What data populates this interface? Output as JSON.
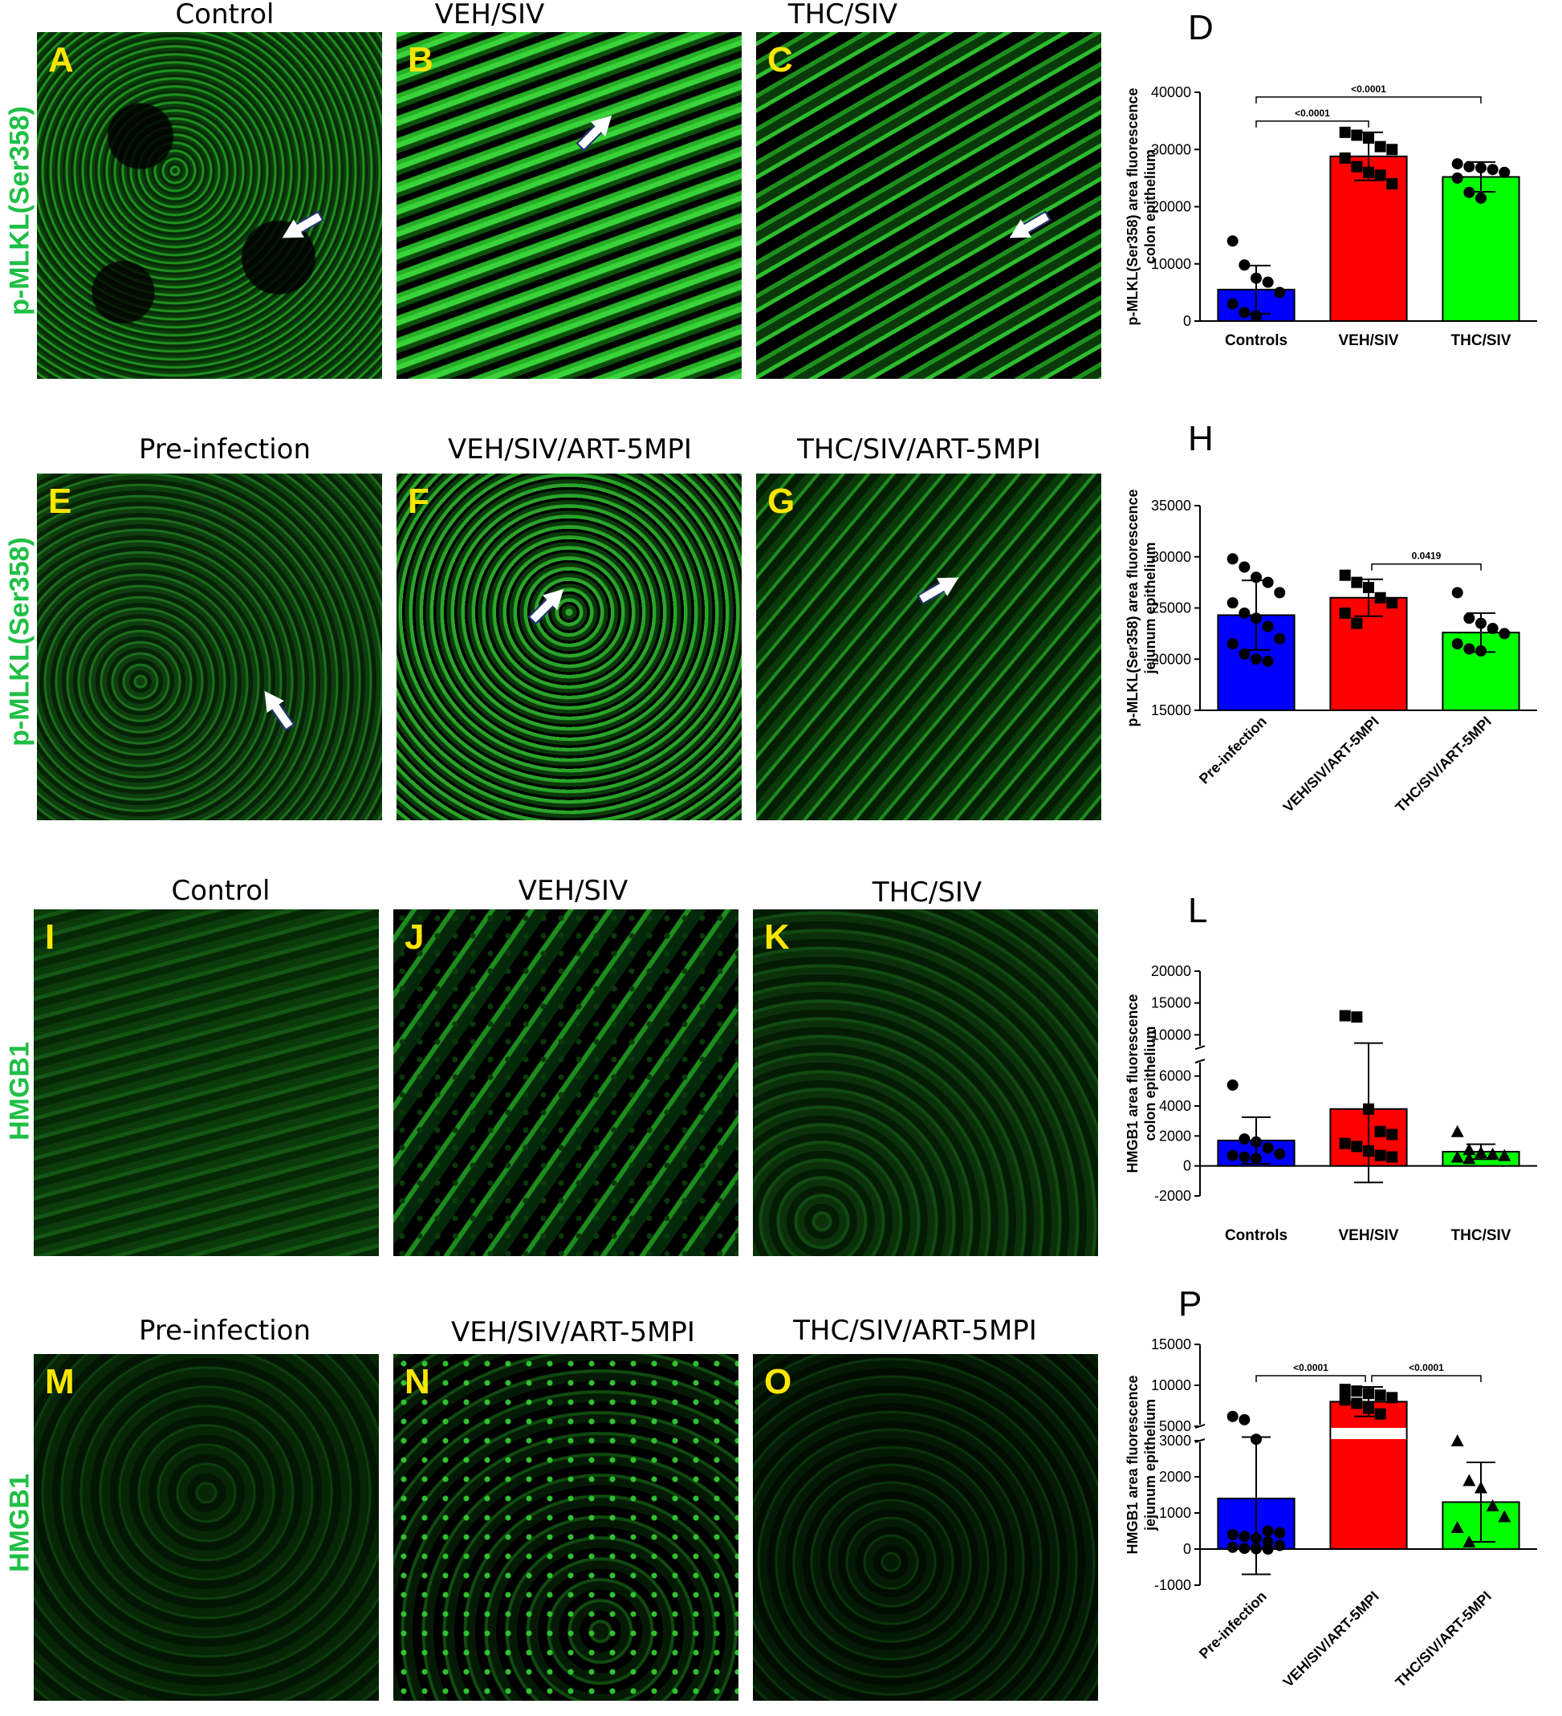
{
  "colors": {
    "blue": "#0000ff",
    "red": "#ff0000",
    "green": "#00ff00",
    "label_green": "#1fbf45",
    "letter_yellow": "#ffe600"
  },
  "rows": [
    {
      "row_label": "p-MLKL(Ser358)",
      "panels": [
        {
          "title": "Control",
          "letter": "A"
        },
        {
          "title": "VEH/SIV",
          "letter": "B"
        },
        {
          "title": "THC/SIV",
          "letter": "C"
        }
      ],
      "chart_letter": "D"
    },
    {
      "row_label": "p-MLKL(Ser358)",
      "panels": [
        {
          "title": "Pre-infection",
          "letter": "E"
        },
        {
          "title": "VEH/SIV/ART-5MPI",
          "letter": "F"
        },
        {
          "title": "THC/SIV/ART-5MPI",
          "letter": "G"
        }
      ],
      "chart_letter": "H"
    },
    {
      "row_label": "HMGB1",
      "panels": [
        {
          "title": "Control",
          "letter": "I"
        },
        {
          "title": "VEH/SIV",
          "letter": "J"
        },
        {
          "title": "THC/SIV",
          "letter": "K"
        }
      ],
      "chart_letter": "L"
    },
    {
      "row_label": "HMGB1",
      "panels": [
        {
          "title": "Pre-infection",
          "letter": "M"
        },
        {
          "title": "VEH/SIV/ART-5MPI",
          "letter": "N"
        },
        {
          "title": "THC/SIV/ART-5MPI",
          "letter": "O"
        }
      ],
      "chart_letter": "P"
    }
  ],
  "chart_data": [
    {
      "type": "bar",
      "panel": "D",
      "ylabel": "p-MLKL(Ser358) area fluorescence colon epithelium",
      "categories": [
        "Controls",
        "VEH/SIV",
        "THC/SIV"
      ],
      "values": [
        5500,
        28800,
        25200
      ],
      "errors": [
        4200,
        4200,
        2600
      ],
      "points": [
        [
          14000,
          9800,
          7500,
          6800,
          5000,
          3000,
          1500,
          900
        ],
        [
          33000,
          32500,
          32000,
          30500,
          30000,
          28500,
          27000,
          26000,
          25500,
          24000
        ],
        [
          27500,
          27000,
          26800,
          26500,
          26000,
          25000,
          22500,
          21500
        ]
      ],
      "markers": [
        "circle",
        "square",
        "circle"
      ],
      "ylim": [
        0,
        40000
      ],
      "yticks": [
        "0",
        "10000",
        "20000",
        "30000",
        "40000"
      ],
      "yticks_values": [
        0,
        10000,
        20000,
        30000,
        40000
      ],
      "sig": [
        {
          "from": 0,
          "to": 1,
          "label": "<0.0001",
          "level": 0
        },
        {
          "from": 0,
          "to": 2,
          "label": "<0.0001",
          "level": 1
        }
      ]
    },
    {
      "type": "bar",
      "panel": "H",
      "ylabel": "p-MLKL(Ser358) area fluorescence jejunum epithelium",
      "categories": [
        "Pre-infection",
        "VEH/SIV/ART-5MPI",
        "THC/SIV/ART-5MPI"
      ],
      "values": [
        24300,
        26000,
        22600
      ],
      "errors": [
        3400,
        1800,
        1900
      ],
      "points": [
        [
          29800,
          29000,
          28000,
          27500,
          26500,
          25500,
          24500,
          24000,
          23200,
          22000,
          21500,
          20500,
          20000,
          19800
        ],
        [
          28200,
          27500,
          27000,
          26000,
          25500,
          24500,
          23500
        ],
        [
          26500,
          24000,
          23500,
          23000,
          22500,
          21500,
          21000,
          20800
        ]
      ],
      "markers": [
        "circle",
        "square",
        "circle"
      ],
      "ylim": [
        15000,
        35000
      ],
      "yticks": [
        "15000",
        "20000",
        "25000",
        "30000",
        "35000"
      ],
      "yticks_values": [
        15000,
        20000,
        25000,
        30000,
        35000
      ],
      "sig": [
        {
          "from": 1,
          "to": 2,
          "label": "0.0419",
          "level": 0
        }
      ]
    },
    {
      "type": "bar",
      "panel": "L",
      "ylabel": "HMGB1 area fluorescence colon epithelium",
      "categories": [
        "Controls",
        "VEH/SIV",
        "THC/SIV"
      ],
      "values": [
        1700,
        3800,
        950
      ],
      "errors": [
        1550,
        4900,
        500
      ],
      "points": [
        [
          5400,
          1800,
          1600,
          1200,
          800,
          700,
          600,
          500
        ],
        [
          13000,
          12800,
          3800,
          2300,
          2100,
          1500,
          1300,
          1000,
          700,
          600
        ],
        [
          2300,
          1100,
          900,
          800,
          700,
          600,
          500
        ]
      ],
      "markers": [
        "circle",
        "square",
        "triangle"
      ],
      "ylim": [
        -2000,
        20000
      ],
      "yticks": [
        "-2000",
        "0",
        "2000",
        "4000",
        "6000",
        "10000",
        "15000",
        "20000"
      ],
      "yticks_values": [
        -2000,
        0,
        2000,
        4000,
        6000,
        10000,
        15000,
        20000
      ],
      "axis_break": [
        7000,
        8000
      ]
    },
    {
      "type": "bar",
      "panel": "P",
      "ylabel": "HMGB1 area fluorescence jejunum epithelium",
      "categories": [
        "Pre-infection",
        "VEH/SIV/ART-5MPI",
        "THC/SIV/ART-5MPI"
      ],
      "values": [
        1400,
        8000,
        1300
      ],
      "errors": [
        2100,
        1800,
        1100
      ],
      "points": [
        [
          6200,
          5800,
          3200,
          500,
          450,
          400,
          350,
          300,
          200,
          100,
          50,
          20,
          10,
          0
        ],
        [
          9500,
          9300,
          9000,
          8800,
          8500,
          8200,
          7800,
          7200,
          6500
        ],
        [
          3000,
          1900,
          1700,
          1200,
          900,
          600,
          200
        ]
      ],
      "markers": [
        "circle",
        "square",
        "triangle"
      ],
      "ylim": [
        -1000,
        15000
      ],
      "yticks": [
        "-1000",
        "0",
        "1000",
        "2000",
        "3000",
        "5000",
        "10000",
        "15000"
      ],
      "yticks_values": [
        -1000,
        0,
        1000,
        2000,
        3000,
        5000,
        10000,
        15000
      ],
      "axis_break": [
        3000,
        5000
      ],
      "sig": [
        {
          "from": 0,
          "to": 1,
          "label": "<0.0001",
          "level": 0
        },
        {
          "from": 1,
          "to": 2,
          "label": "<0.0001",
          "level": 0
        }
      ]
    }
  ]
}
